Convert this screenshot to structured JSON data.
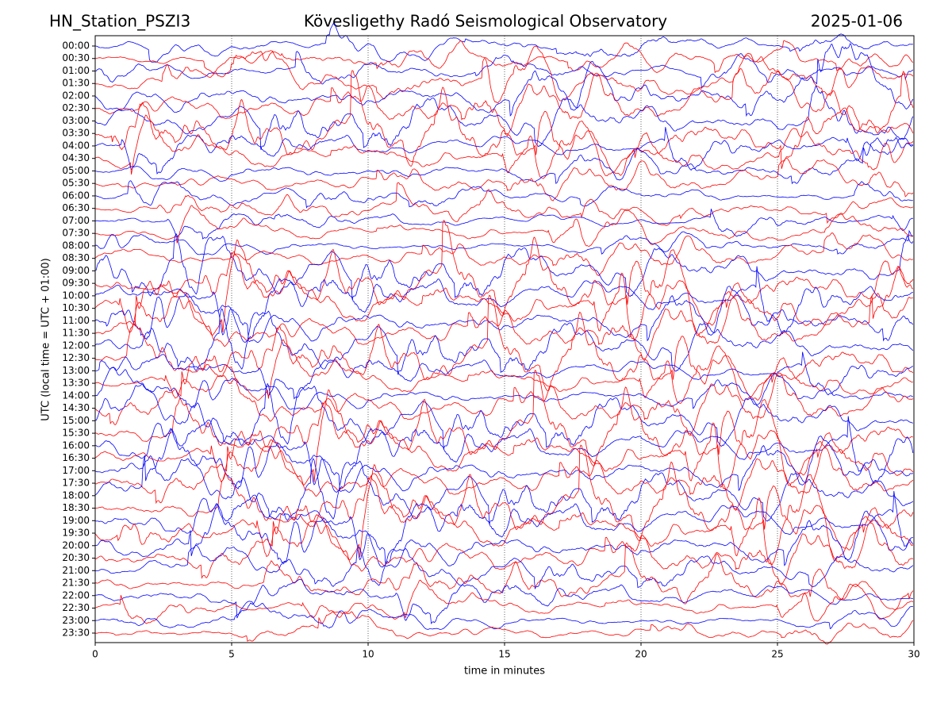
{
  "chart_data": {
    "type": "helicorder",
    "title": "Kövesligethy Radó Seismological Observatory",
    "station": "HN_Station_PSZI3",
    "date": "2025-01-06",
    "ylabel": "UTC (local time = UTC + 01:00)",
    "xlabel": "time in minutes",
    "xlim": [
      0,
      30
    ],
    "xticks": [
      0,
      5,
      10,
      15,
      20,
      25,
      30
    ],
    "grid": true,
    "colors": [
      "#0000ff",
      "#ff0000"
    ],
    "categories": [
      "00:00",
      "00:30",
      "01:00",
      "01:30",
      "02:00",
      "02:30",
      "03:00",
      "03:30",
      "04:00",
      "04:30",
      "05:00",
      "05:30",
      "06:00",
      "06:30",
      "07:00",
      "07:30",
      "08:00",
      "08:30",
      "09:00",
      "09:30",
      "10:00",
      "10:30",
      "11:00",
      "11:30",
      "12:00",
      "12:30",
      "13:00",
      "13:30",
      "14:00",
      "14:30",
      "15:00",
      "15:30",
      "16:00",
      "16:30",
      "17:00",
      "17:30",
      "18:00",
      "18:30",
      "19:00",
      "19:30",
      "20:00",
      "20:30",
      "21:00",
      "21:30",
      "22:00",
      "22:30",
      "23:00",
      "23:30"
    ]
  }
}
